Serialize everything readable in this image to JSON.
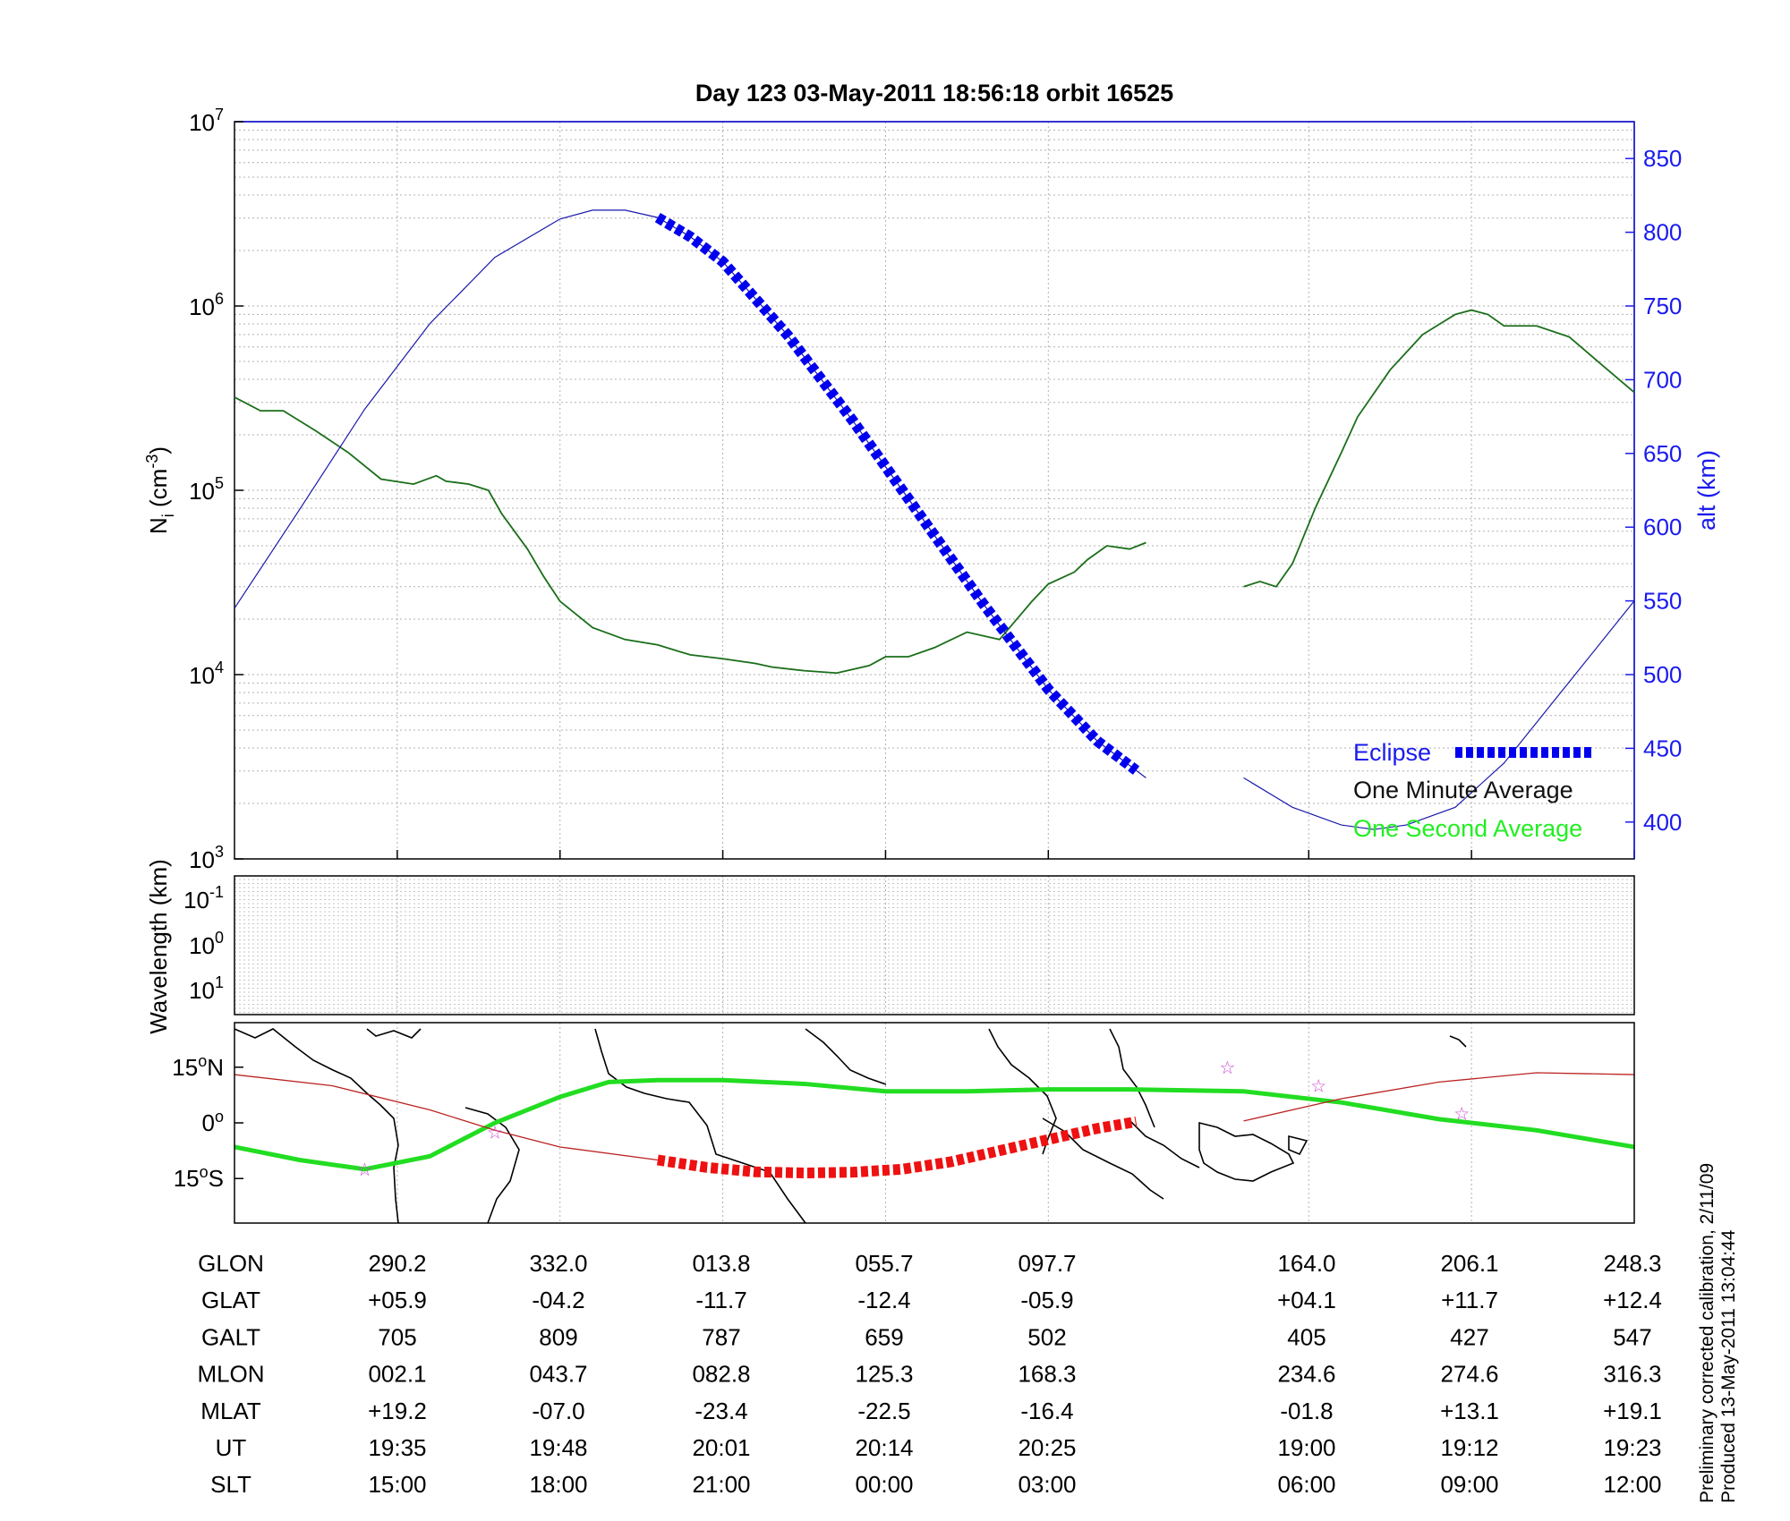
{
  "chart_data": [
    {
      "type": "line",
      "title": "Day 123  03-May-2011 18:56:18   orbit 16525",
      "ylabel_main": "N",
      "ylabel_sub": "i",
      "ylabel_unit_prefix": "(cm",
      "ylabel_unit_sup": "-3",
      "ylabel_unit_suffix": ")",
      "yscale": "log",
      "ylim": [
        1000,
        10000000
      ],
      "yticks": [
        {
          "base": "10",
          "exp": "3"
        },
        {
          "base": "10",
          "exp": "4"
        },
        {
          "base": "10",
          "exp": "5"
        },
        {
          "base": "10",
          "exp": "6"
        },
        {
          "base": "10",
          "exp": "7"
        }
      ],
      "xlim": [
        0,
        430
      ],
      "xtick_positions": [
        50,
        100,
        150,
        200,
        250,
        330,
        380,
        430
      ],
      "y2label": "alt (km)",
      "y2lim": [
        375,
        875
      ],
      "y2ticks": [
        "400",
        "450",
        "500",
        "550",
        "600",
        "650",
        "700",
        "750",
        "800",
        "850"
      ],
      "grid": true,
      "legend_position": "bottom-right",
      "legend": {
        "eclipse": "Eclipse",
        "minute": "One Minute Average",
        "second": "One Second Average"
      },
      "colors": {
        "density": "#1a6e1a",
        "density_second": "#22cc22",
        "altitude": "#1a1aaa",
        "eclipse": "#0000ee",
        "axis2": "#1a1aee"
      },
      "series": [
        {
          "key": "density",
          "x": [
            0,
            8,
            15,
            25,
            35,
            45,
            55,
            62,
            65,
            72,
            78,
            82,
            90,
            95,
            100,
            110,
            120,
            130,
            140,
            150,
            160,
            165,
            175,
            185,
            195,
            200,
            207,
            215,
            225,
            235,
            245,
            250,
            258,
            262,
            268,
            275,
            280
          ],
          "y": [
            320000,
            270000,
            270000,
            210000,
            160000,
            115000,
            108000,
            120000,
            112000,
            108000,
            100000,
            75000,
            48000,
            34000,
            25000,
            18000,
            15500,
            14500,
            12800,
            12200,
            11500,
            11000,
            10500,
            10200,
            11200,
            12500,
            12500,
            14000,
            17000,
            15500,
            25000,
            31000,
            36000,
            42000,
            50000,
            48000,
            52000
          ]
        },
        {
          "key": "density",
          "x": [
            310,
            315,
            320,
            325,
            332,
            340,
            345,
            355,
            365,
            375,
            380,
            385,
            390,
            400,
            410,
            420,
            430
          ],
          "y": [
            30000,
            32000,
            30000,
            40000,
            80000,
            160000,
            250000,
            450000,
            700000,
            900000,
            950000,
            900000,
            780000,
            780000,
            680000,
            480000,
            340000
          ]
        },
        {
          "key": "altitude",
          "x": [
            0,
            20,
            40,
            60,
            80,
            100,
            110,
            120,
            130,
            140,
            150,
            170,
            190,
            210,
            230,
            250,
            265,
            280
          ],
          "y": [
            545,
            612,
            680,
            738,
            783,
            809,
            815,
            815,
            810,
            797,
            780,
            730,
            672,
            610,
            548,
            490,
            455,
            430
          ]
        },
        {
          "key": "altitude",
          "x": [
            310,
            325,
            340,
            350,
            360,
            375,
            390,
            410,
            430
          ],
          "y": [
            430,
            410,
            398,
            395,
            398,
            410,
            440,
            495,
            550
          ]
        }
      ],
      "eclipse_range": [
        130,
        277
      ]
    },
    {
      "type": "line",
      "ylabel": "Wavelength (km)",
      "yticks": [
        {
          "base": "10",
          "exp": "-1"
        },
        {
          "base": "10",
          "exp": "0"
        },
        {
          "base": "10",
          "exp": "1"
        }
      ],
      "series": []
    },
    {
      "type": "line",
      "ylim": [
        -27,
        27
      ],
      "yticks": [
        {
          "value": 15,
          "label": "15",
          "deg": "o",
          "suffix": "N"
        },
        {
          "value": 0,
          "label": "0",
          "deg": "o",
          "suffix": ""
        },
        {
          "value": -15,
          "label": "15",
          "deg": "o",
          "suffix": "S"
        }
      ],
      "colors": {
        "ground_track": "#22dd22",
        "magnetic_equator": "#bb2222",
        "eclipse_track": "#ee1111",
        "star": "#cc44cc",
        "coast": "#000000"
      },
      "series": [
        {
          "key": "ground_track",
          "x": [
            0,
            20,
            40,
            60,
            80,
            100,
            115,
            130,
            150,
            175,
            200,
            225,
            250,
            275,
            310,
            340,
            370,
            400,
            430
          ],
          "y": [
            -6.5,
            -10,
            -12.5,
            -9,
            0,
            7,
            11,
            11.5,
            11.5,
            10.5,
            8.5,
            8.5,
            9,
            9,
            8.5,
            5.5,
            1,
            -2,
            -6.5
          ]
        },
        {
          "key": "magnetic_equator",
          "x": [
            0,
            30,
            60,
            80,
            100,
            130
          ],
          "y": [
            13,
            10,
            3.5,
            -2,
            -6.5,
            -10
          ]
        },
        {
          "key": "magnetic_equator",
          "x": [
            310,
            340,
            370,
            400,
            430
          ],
          "y": [
            0.5,
            6.5,
            11,
            13.5,
            13
          ]
        },
        {
          "key": "eclipse_track",
          "x": [
            130,
            145,
            160,
            175,
            190,
            205,
            220,
            235,
            250,
            265,
            277
          ],
          "y": [
            -10,
            -12,
            -13.2,
            -13.5,
            -13.3,
            -12.5,
            -10.5,
            -7.5,
            -4.5,
            -1.5,
            0.3
          ]
        }
      ],
      "stars_x": [
        40,
        80,
        305,
        333,
        377
      ],
      "stars_y": [
        -12.5,
        -2.5,
        15,
        10,
        2.5
      ]
    }
  ],
  "table": {
    "row_labels": [
      "GLON",
      "GLAT",
      "GALT",
      "MLON",
      "MLAT",
      "UT",
      "SLT"
    ],
    "columns": [
      [
        "290.2",
        "+05.9",
        "705",
        "002.1",
        "+19.2",
        "19:35",
        "15:00"
      ],
      [
        "332.0",
        "-04.2",
        "809",
        "043.7",
        "-07.0",
        "19:48",
        "18:00"
      ],
      [
        "013.8",
        "-11.7",
        "787",
        "082.8",
        "-23.4",
        "20:01",
        "21:00"
      ],
      [
        "055.7",
        "-12.4",
        "659",
        "125.3",
        "-22.5",
        "20:14",
        "00:00"
      ],
      [
        "097.7",
        "-05.9",
        "502",
        "168.3",
        "-16.4",
        "20:25",
        "03:00"
      ],
      [
        "164.0",
        "+04.1",
        "405",
        "234.6",
        "-01.8",
        "19:00",
        "06:00"
      ],
      [
        "206.1",
        "+11.7",
        "427",
        "274.6",
        "+13.1",
        "19:12",
        "09:00"
      ],
      [
        "248.3",
        "+12.4",
        "547",
        "316.3",
        "+19.1",
        "19:23",
        "12:00"
      ]
    ]
  },
  "footnote": {
    "line1": "Preliminary corrected calibration, 2/11/09",
    "line2": "Produced 13-May-2011 13:04:44"
  }
}
